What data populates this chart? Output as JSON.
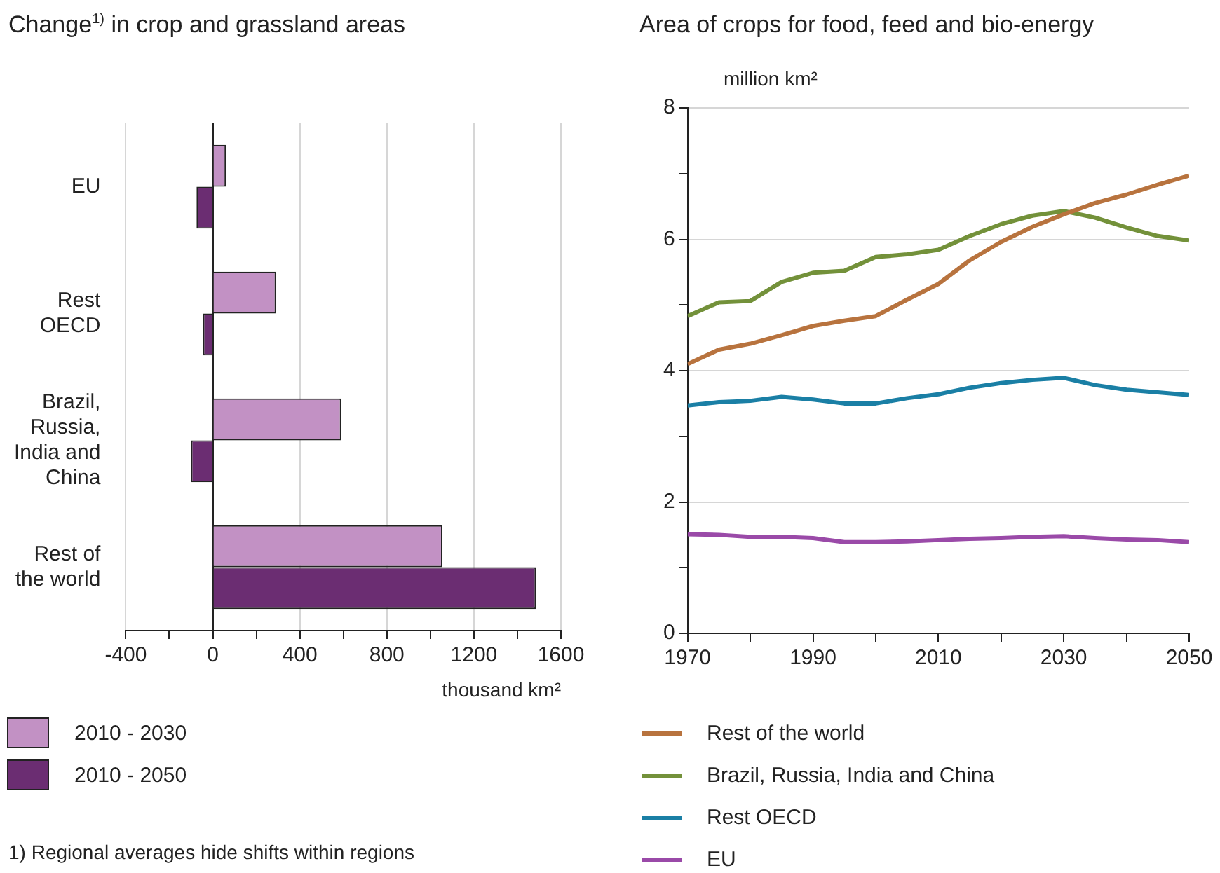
{
  "chart_data": [
    {
      "type": "bar",
      "orientation": "horizontal",
      "title": "Change$^{1)}$ in crop and grassland areas",
      "xlabel": "thousand km²",
      "categories": [
        "EU",
        "Rest OECD",
        "Brazil, Russia, India and China",
        "Rest of the world"
      ],
      "series": [
        {
          "name": "2010 - 2030",
          "color": "#c291c4",
          "values": [
            60,
            290,
            590,
            1055
          ]
        },
        {
          "name": "2010 - 2050",
          "color": "#6b2d72",
          "values": [
            -75,
            -45,
            -100,
            1485
          ]
        }
      ],
      "xlim": [
        -400,
        1600
      ],
      "xticks": [
        -400,
        {
          "value": -200,
          "label": null
        },
        0,
        {
          "value": 200,
          "label": null
        },
        400,
        {
          "value": 600,
          "label": null
        },
        800,
        {
          "value": 1000,
          "label": null
        },
        1200,
        {
          "value": 1400,
          "label": null
        },
        1600
      ],
      "grid": "x",
      "legend": "bottom",
      "annotations": [
        "1) Regional averages hide shifts within regions"
      ]
    },
    {
      "type": "line",
      "title": "Area of crops for food, feed and bio-energy",
      "ylabel": "million km²",
      "x": [
        1970,
        1975,
        1980,
        1985,
        1990,
        1995,
        2000,
        2005,
        2010,
        2015,
        2020,
        2025,
        2030,
        2035,
        2040,
        2045,
        2050
      ],
      "series": [
        {
          "name": "Rest of the world",
          "color": "#b8733e",
          "values": [
            4.1,
            4.32,
            4.41,
            4.54,
            4.68,
            4.76,
            4.83,
            5.08,
            5.32,
            5.68,
            5.96,
            6.19,
            6.38,
            6.55,
            6.68,
            6.83,
            6.97
          ]
        },
        {
          "name": "Brazil, Russia, India and China",
          "color": "#73913a",
          "values": [
            4.83,
            5.04,
            5.06,
            5.35,
            5.49,
            5.52,
            5.73,
            5.77,
            5.84,
            6.05,
            6.23,
            6.36,
            6.43,
            6.33,
            6.18,
            6.05,
            5.98
          ]
        },
        {
          "name": "Rest OECD",
          "color": "#1a7fa5",
          "values": [
            3.47,
            3.52,
            3.54,
            3.6,
            3.56,
            3.5,
            3.5,
            3.58,
            3.64,
            3.74,
            3.81,
            3.86,
            3.89,
            3.78,
            3.71,
            3.67,
            3.63
          ]
        },
        {
          "name": "EU",
          "color": "#9a4aa8",
          "values": [
            1.51,
            1.5,
            1.47,
            1.47,
            1.45,
            1.39,
            1.39,
            1.4,
            1.42,
            1.44,
            1.45,
            1.47,
            1.48,
            1.45,
            1.43,
            1.42,
            1.39
          ]
        }
      ],
      "xlim": [
        1970,
        2050
      ],
      "xticks": [
        1970,
        {
          "value": 1980,
          "label": null
        },
        1990,
        {
          "value": 2000,
          "label": null
        },
        2010,
        {
          "value": 2020,
          "label": null
        },
        2030,
        {
          "value": 2040,
          "label": null
        },
        2050
      ],
      "ylim": [
        0,
        8
      ],
      "yticks": [
        0,
        {
          "value": 1,
          "label": null
        },
        2,
        {
          "value": 3,
          "label": null
        },
        4,
        {
          "value": 5,
          "label": null
        },
        6,
        {
          "value": 7,
          "label": null
        },
        8
      ],
      "grid": "y",
      "legend": "bottom"
    }
  ]
}
